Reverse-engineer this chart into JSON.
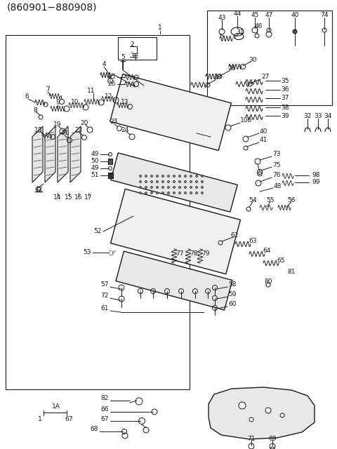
{
  "title": "(860901−880908)",
  "bg_color": "#ffffff",
  "line_color": "#1a1a1a",
  "text_color": "#1a1a1a",
  "font_size": 6.5,
  "title_font_size": 10,
  "fig_width": 4.8,
  "fig_height": 6.4,
  "dpi": 100
}
